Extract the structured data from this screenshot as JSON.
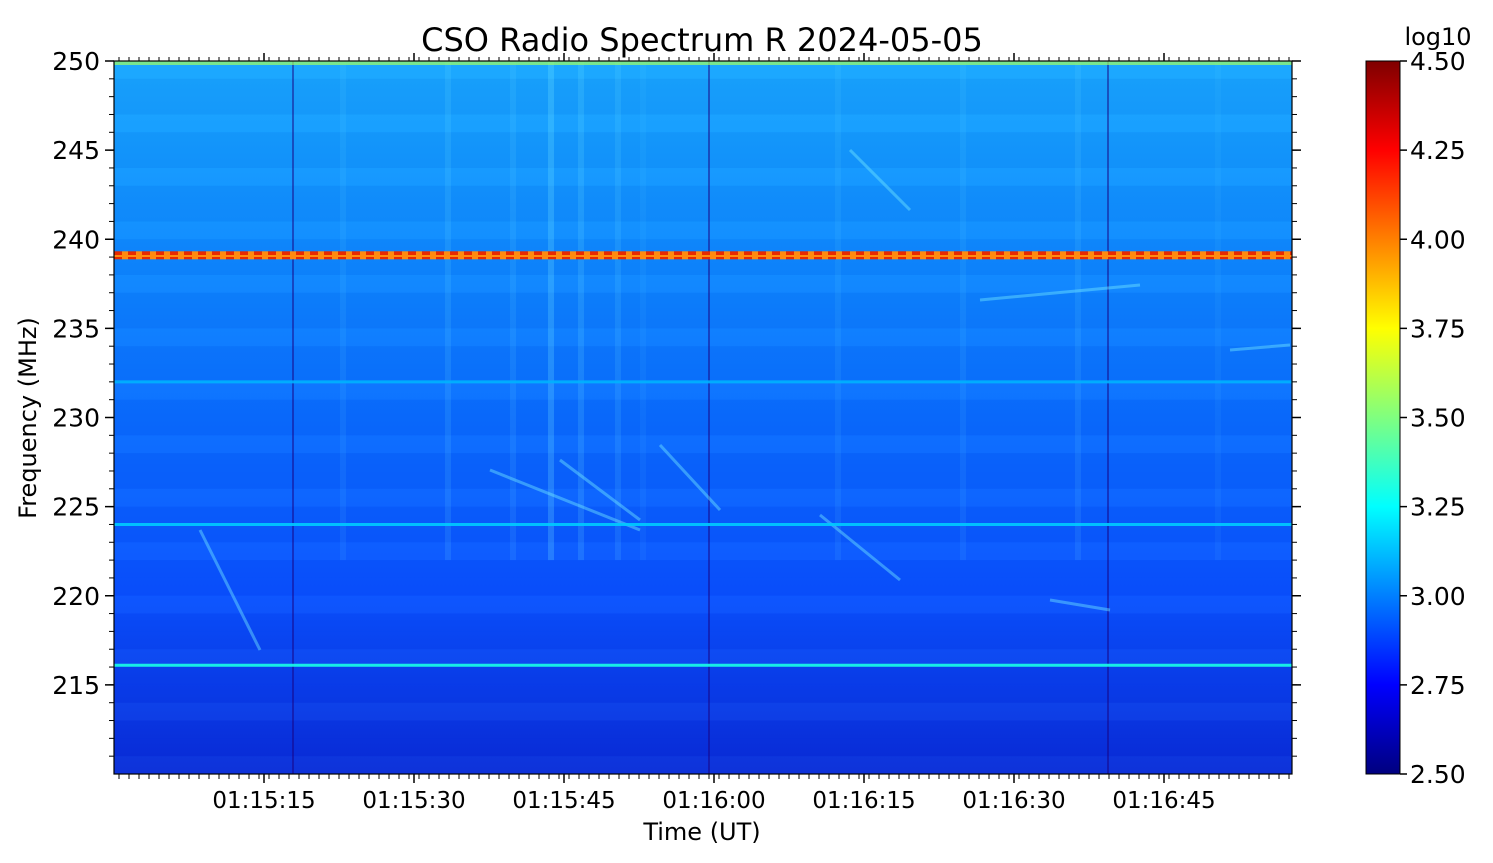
{
  "chart_data": {
    "type": "heatmap",
    "title": "CSO Radio Spectrum R 2024-05-05",
    "xlabel": "Time (UT)",
    "ylabel": "Frequency (MHz)",
    "x_ticks": [
      "01:15:15",
      "01:15:30",
      "01:15:45",
      "01:16:00",
      "01:16:15",
      "01:16:30",
      "01:16:45"
    ],
    "y_ticks": [
      215,
      220,
      225,
      230,
      235,
      240,
      245,
      250
    ],
    "ylim": [
      210,
      250
    ],
    "colorbar": {
      "label": "log10",
      "range": [
        2.5,
        4.5
      ],
      "ticks": [
        "2.50",
        "2.75",
        "3.00",
        "3.25",
        "3.50",
        "3.75",
        "4.00",
        "4.25",
        "4.50"
      ],
      "colormap": "jet"
    },
    "features": [
      {
        "kind": "strong-band",
        "frequency": 239.1,
        "level": 4.05
      },
      {
        "kind": "line",
        "frequency": 216.1,
        "level": 3.3
      },
      {
        "kind": "line",
        "frequency": 224.0,
        "level": 3.15
      },
      {
        "kind": "line",
        "frequency": 232.0,
        "level": 3.1
      }
    ]
  }
}
